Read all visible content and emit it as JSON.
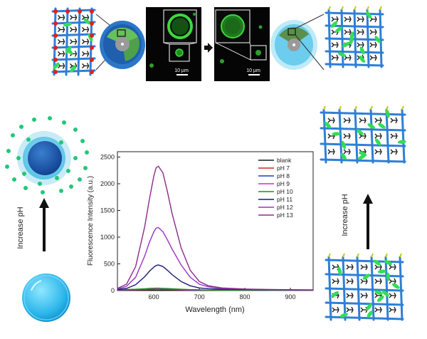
{
  "micrographs": {
    "scale_bar_left": "10 µm",
    "scale_bar_right": "10 µm"
  },
  "side_labels": {
    "left": "Increase pH",
    "right": "Increase pH"
  },
  "chart_data": {
    "type": "line",
    "xlabel": "Wavelength (nm)",
    "ylabel": "Fluorescence Intensity (a.u.)",
    "xlim": [
      520,
      950
    ],
    "ylim": [
      0,
      2600
    ],
    "xticks": [
      600,
      700,
      800,
      900
    ],
    "yticks": [
      0,
      500,
      1000,
      1500,
      2000,
      2500
    ],
    "legend_position": "top-right",
    "x": [
      520,
      540,
      560,
      580,
      590,
      600,
      605,
      610,
      620,
      630,
      640,
      660,
      680,
      700,
      720,
      750,
      800,
      850,
      900,
      950
    ],
    "series": [
      {
        "name": "blank",
        "color": "#1a1a1a",
        "values": [
          5,
          5,
          5,
          5,
          5,
          6,
          6,
          6,
          5,
          5,
          5,
          5,
          5,
          5,
          5,
          5,
          5,
          5,
          5,
          5
        ]
      },
      {
        "name": "pH 7",
        "color": "#d62728",
        "values": [
          10,
          12,
          15,
          20,
          22,
          24,
          25,
          25,
          23,
          21,
          18,
          14,
          11,
          9,
          8,
          7,
          6,
          6,
          5,
          5
        ]
      },
      {
        "name": "pH 8",
        "color": "#1f3fbf",
        "values": [
          12,
          14,
          18,
          24,
          27,
          29,
          30,
          30,
          28,
          25,
          22,
          17,
          13,
          10,
          9,
          8,
          7,
          6,
          6,
          5
        ]
      },
      {
        "name": "pH 9",
        "color": "#e020e0",
        "values": [
          14,
          16,
          21,
          28,
          32,
          34,
          35,
          35,
          33,
          30,
          26,
          20,
          15,
          12,
          10,
          9,
          8,
          7,
          6,
          6
        ]
      },
      {
        "name": "pH 10",
        "color": "#1f8f1f",
        "values": [
          16,
          20,
          26,
          35,
          40,
          44,
          45,
          45,
          42,
          38,
          33,
          25,
          18,
          14,
          11,
          10,
          8,
          7,
          7,
          6
        ]
      },
      {
        "name": "pH 11",
        "color": "#1a1a7a",
        "values": [
          20,
          40,
          110,
          260,
          360,
          440,
          470,
          480,
          450,
          380,
          300,
          170,
          90,
          50,
          35,
          25,
          18,
          15,
          12,
          10
        ]
      },
      {
        "name": "pH 12",
        "color": "#9b30c9",
        "values": [
          30,
          80,
          250,
          650,
          900,
          1100,
          1170,
          1180,
          1100,
          950,
          780,
          480,
          250,
          120,
          70,
          40,
          25,
          18,
          14,
          12
        ]
      },
      {
        "name": "pH 13",
        "color": "#8b2a8b",
        "values": [
          40,
          120,
          450,
          1200,
          1700,
          2150,
          2300,
          2330,
          2200,
          1850,
          1450,
          800,
          380,
          170,
          90,
          50,
          30,
          22,
          16,
          12
        ]
      }
    ]
  }
}
